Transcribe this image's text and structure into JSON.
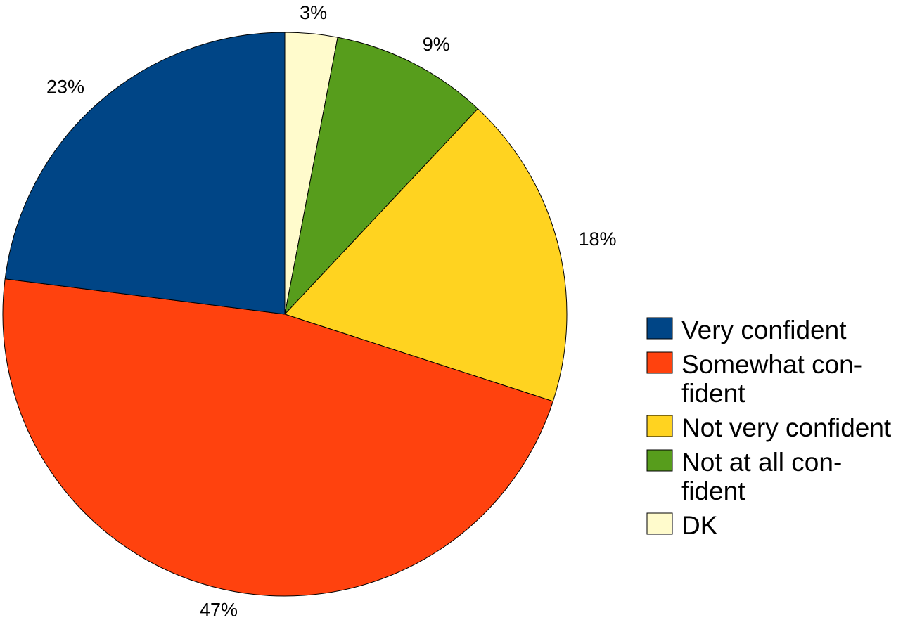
{
  "chart_data": {
    "type": "pie",
    "title": "",
    "start_angle_deg": 0,
    "direction": "clockwise",
    "legend_position": "right",
    "slices": [
      {
        "key": "dk",
        "label": "DK",
        "legend_lines": [
          "DK"
        ],
        "value": 3,
        "display": "3%",
        "color": "#FFFBCC"
      },
      {
        "key": "not-at-all-confident",
        "label": "Not at all confident",
        "legend_lines": [
          "Not at all con-",
          "fident"
        ],
        "value": 9,
        "display": "9%",
        "color": "#579D1C"
      },
      {
        "key": "not-very-confident",
        "label": "Not very confident",
        "legend_lines": [
          "Not very confident"
        ],
        "value": 18,
        "display": "18%",
        "color": "#FFD320"
      },
      {
        "key": "somewhat-confident",
        "label": "Somewhat confident",
        "legend_lines": [
          "Somewhat con-",
          "fident"
        ],
        "value": 47,
        "display": "47%",
        "color": "#FF420E"
      },
      {
        "key": "very-confident",
        "label": "Very confident",
        "legend_lines": [
          "Very confident"
        ],
        "value": 23,
        "display": "23%",
        "color": "#004586"
      }
    ],
    "legend_order": [
      "very-confident",
      "somewhat-confident",
      "not-very-confident",
      "not-at-all-confident",
      "dk"
    ]
  }
}
